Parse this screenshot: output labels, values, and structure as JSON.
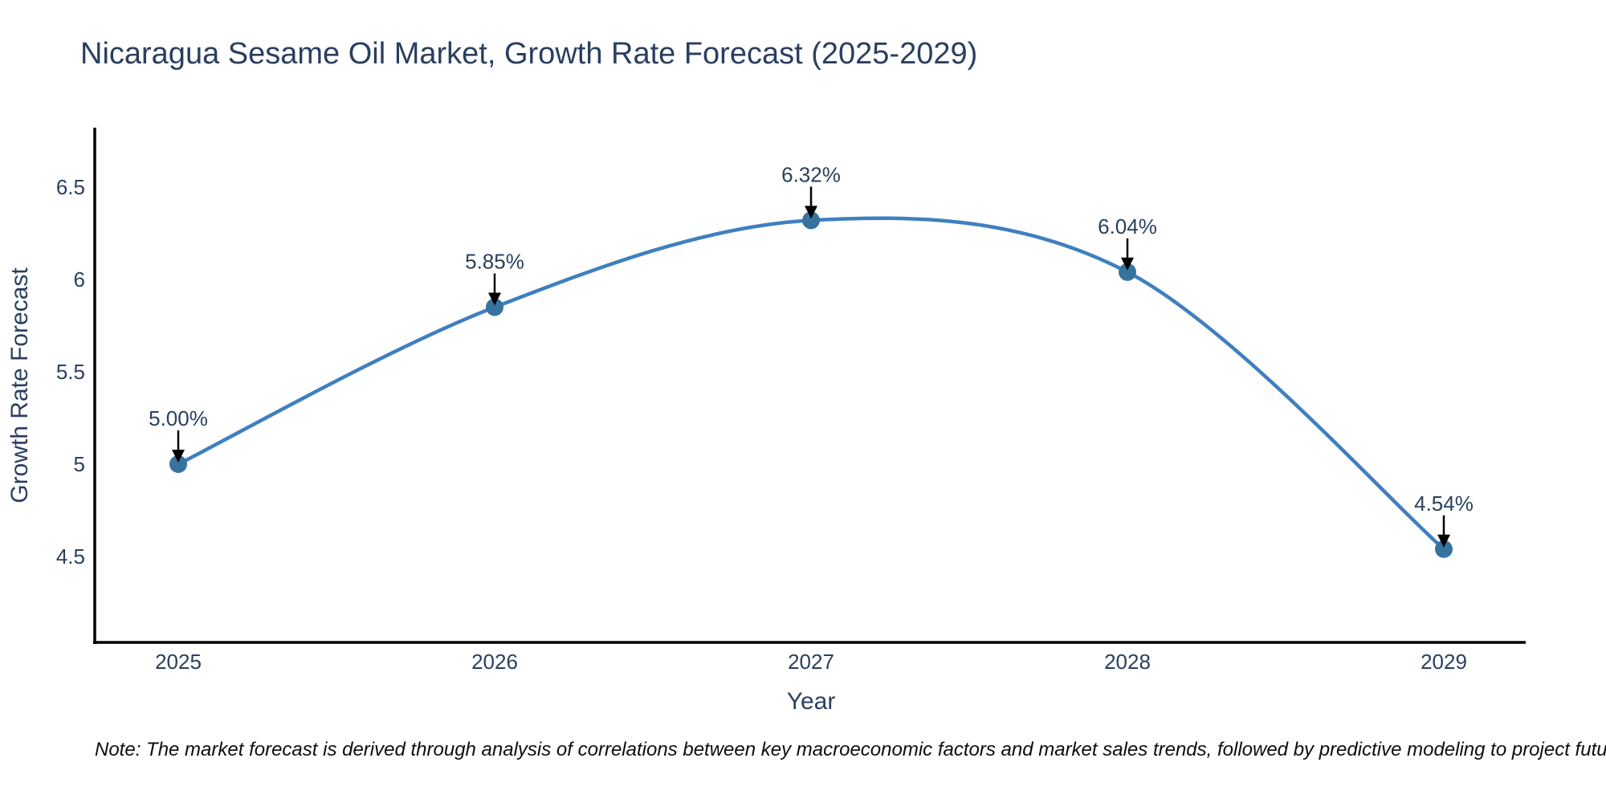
{
  "title": "Nicaragua Sesame Oil Market, Growth Rate Forecast (2025-2029)",
  "note": "Note: The market forecast is derived through analysis of correlations between key macroeconomic factors and market sales trends, followed by predictive modeling to project future sales",
  "chart_data": {
    "type": "line",
    "title": "Nicaragua Sesame Oil Market, Growth Rate Forecast (2025-2029)",
    "xlabel": "Year",
    "ylabel": "Growth Rate Forecast",
    "categories": [
      "2025",
      "2026",
      "2027",
      "2028",
      "2029"
    ],
    "series": [
      {
        "name": "Growth Rate Forecast",
        "values": [
          5.0,
          5.85,
          6.32,
          6.04,
          4.54
        ],
        "point_labels": [
          "5.00%",
          "5.85%",
          "6.32%",
          "6.04%",
          "4.54%"
        ]
      }
    ],
    "line_shape": "spline",
    "markers": true,
    "grid": false,
    "legend": "none",
    "ylim": [
      4.03,
      6.82
    ],
    "ytick_values": [
      4.5,
      5,
      5.5,
      6,
      6.5
    ],
    "ytick_labels": [
      "4.5",
      "5",
      "5.5",
      "6",
      "6.5"
    ],
    "annotations_arrows": true,
    "colors": {
      "line": "#3f7fbf",
      "marker": "#36739f",
      "axis": "#000000",
      "text": "#2a3f5f",
      "arrow": "#000000"
    }
  }
}
